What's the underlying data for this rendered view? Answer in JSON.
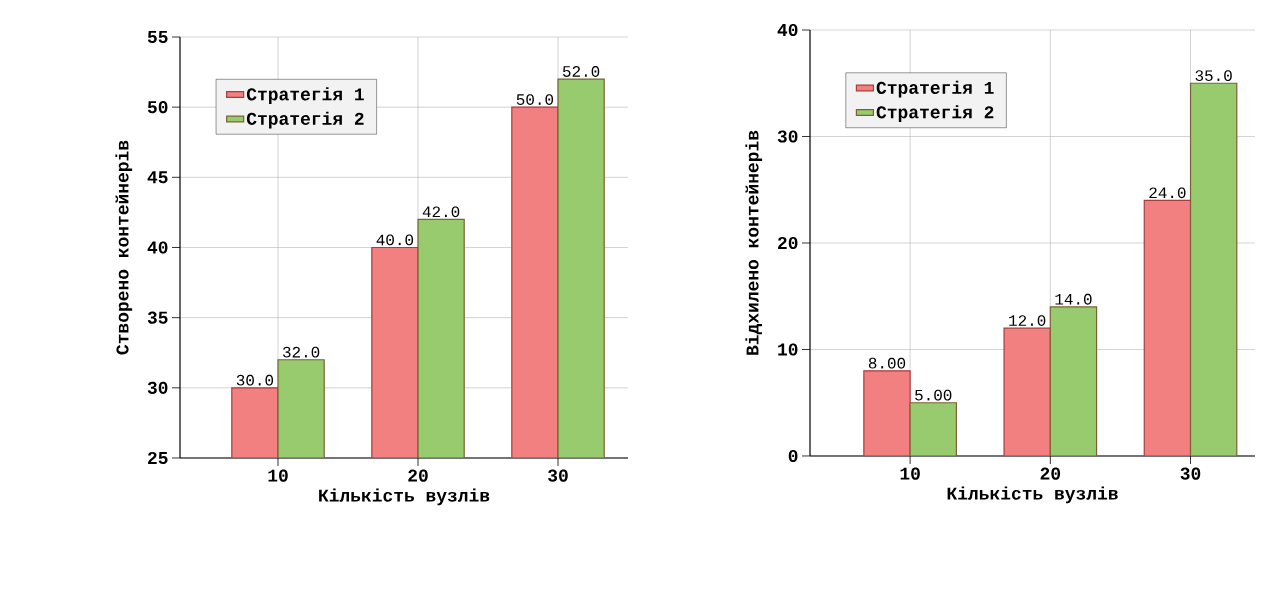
{
  "chart_data": [
    {
      "type": "bar",
      "categories": [
        "10",
        "20",
        "30"
      ],
      "xlabel": "Кількість вузлів",
      "ylabel": "Створено контейнерів",
      "ylim": [
        25,
        55
      ],
      "yticks": [
        25,
        30,
        35,
        40,
        45,
        50,
        55
      ],
      "grid": true,
      "legend": "top left",
      "series": [
        {
          "name": "Стратегія 1",
          "color": "#f28080",
          "values": [
            30,
            40,
            50
          ],
          "value_labels": [
            "30.0",
            "40.0",
            "50.0"
          ]
        },
        {
          "name": "Стратегія 2",
          "color": "#97cb6e",
          "values": [
            32,
            42,
            52
          ],
          "value_labels": [
            "32.0",
            "42.0",
            "52.0"
          ]
        }
      ]
    },
    {
      "type": "bar",
      "categories": [
        "10",
        "20",
        "30"
      ],
      "xlabel": "Кількість вузлів",
      "ylabel": "Відхилено контейнерів",
      "ylim": [
        0,
        40
      ],
      "yticks": [
        0,
        10,
        20,
        30,
        40
      ],
      "grid": true,
      "legend": "top left",
      "series": [
        {
          "name": "Стратегія 1",
          "color": "#f28080",
          "values": [
            8,
            12,
            24
          ],
          "value_labels": [
            "8.00",
            "12.0",
            "24.0"
          ]
        },
        {
          "name": "Стратегія 2",
          "color": "#97cb6e",
          "values": [
            5,
            14,
            35
          ],
          "value_labels": [
            "5.00",
            "14.0",
            "35.0"
          ]
        }
      ]
    }
  ]
}
